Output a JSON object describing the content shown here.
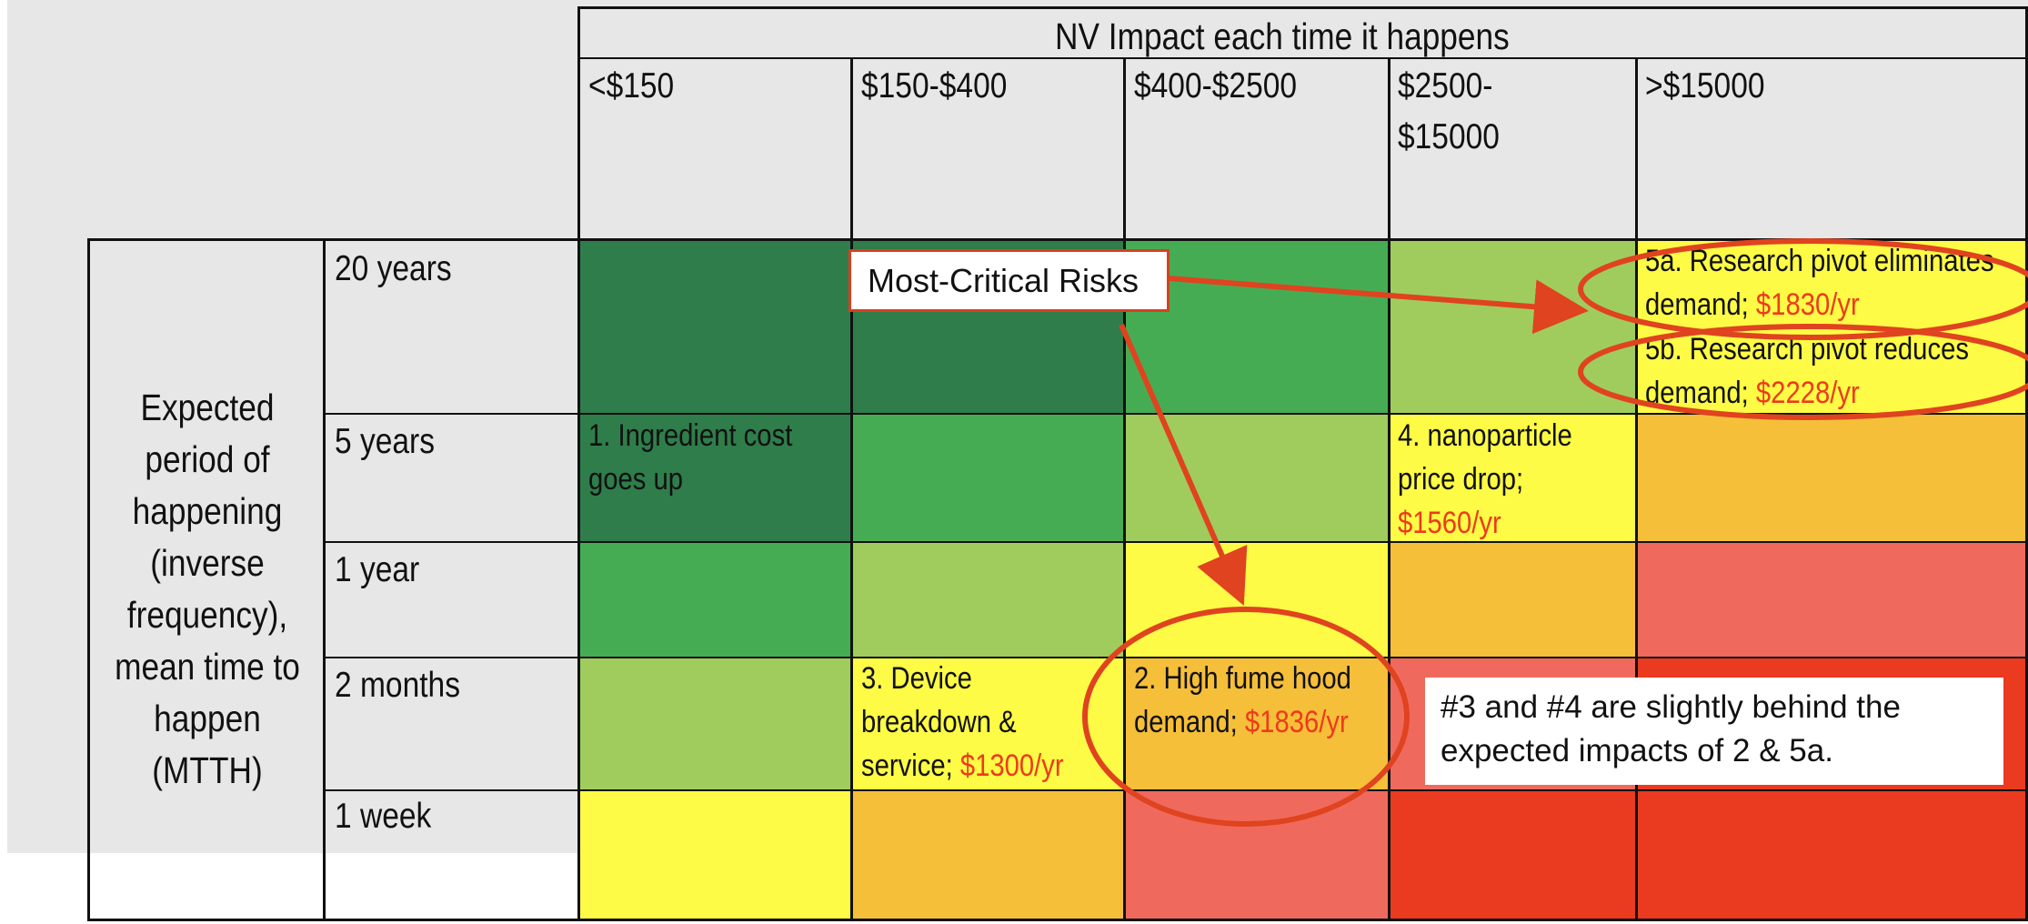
{
  "header": {
    "title": "NV Impact each time it happens"
  },
  "columns": [
    "<$150",
    "$150-$400",
    "$400-$2500",
    "$2500-",
    "$15000",
    ">$15000"
  ],
  "rows": [
    "20 years",
    "5 years",
    "1 year",
    "2 months",
    "1 week"
  ],
  "axis_label": [
    "Expected",
    "period of",
    "happening",
    "(inverse",
    "frequency),",
    "mean time to",
    "happen",
    "(MTTH)"
  ],
  "risks": {
    "r1": {
      "line1": "1. Ingredient cost",
      "line2": "goes up"
    },
    "r2": {
      "line1": "2. High fume hood",
      "line2": "demand; ",
      "value": "$1836/yr"
    },
    "r3": {
      "line1": "3. Device",
      "line2": "breakdown &",
      "line3": "service; ",
      "value": "$1300/yr"
    },
    "r4": {
      "line1": "4. nanoparticle",
      "line2": "price drop;",
      "value": "$1560/yr"
    },
    "r5a": {
      "line1": "5a. Research pivot eliminates",
      "line2": "demand; ",
      "value": "$1830/yr"
    },
    "r5b": {
      "line1": "5b. Research pivot reduces",
      "line2": "demand; ",
      "value": "$2228/yr"
    }
  },
  "callouts": {
    "most_critical": "Most-Critical Risks",
    "note_line1": "#3 and #4 are slightly behind the",
    "note_line2": "expected impacts of 2 & 5a."
  },
  "colors": {
    "dark_green": "#2f7d4b",
    "green": "#46ac54",
    "light_green": "#a0cc5e",
    "yellow": "#fdfb45",
    "orange": "#f6bf39",
    "salmon": "#ef6a5c",
    "red": "#ea3a1f",
    "highlight": "#e0431f"
  },
  "grid_colors": [
    [
      "dark_green",
      "dark_green",
      "green",
      "light_green",
      "yellow"
    ],
    [
      "dark_green",
      "green",
      "light_green",
      "yellow",
      "orange"
    ],
    [
      "green",
      "light_green",
      "yellow",
      "orange",
      "salmon"
    ],
    [
      "light_green",
      "yellow",
      "orange",
      "salmon",
      "red"
    ],
    [
      "yellow",
      "orange",
      "salmon",
      "red",
      "red"
    ]
  ]
}
